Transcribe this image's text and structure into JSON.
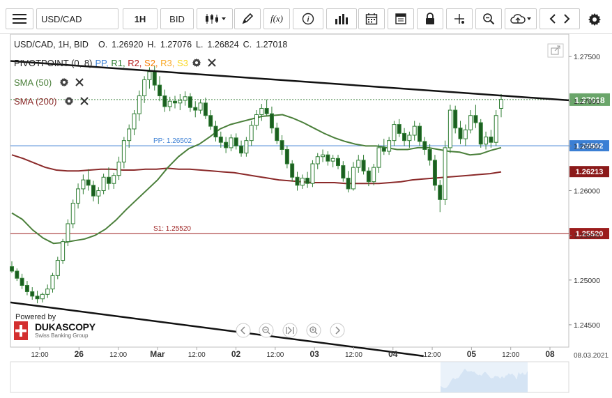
{
  "toolbar": {
    "symbol": "USD/CAD",
    "timeframe": "1H",
    "price_type": "BID",
    "fx_label": "f(x)"
  },
  "chart_header": {
    "text": "USD/CAD, 1H, BID",
    "open_label": "O.",
    "open": "1.26920",
    "high_label": "H.",
    "high": "1.27076",
    "low_label": "L.",
    "low": "1.26824",
    "close_label": "C.",
    "close": "1.27018"
  },
  "indicators": {
    "pivot": {
      "name": "PIVOTPOINT (0, 8)",
      "levels": [
        {
          "label": "PP",
          "color": "#3b7fd4"
        },
        {
          "label": "R1",
          "color": "#2e7d32"
        },
        {
          "label": "R2",
          "color": "#b71c1c"
        },
        {
          "label": "S2",
          "color": "#f57c00"
        },
        {
          "label": "R3",
          "color": "#f9a825"
        },
        {
          "label": "S3",
          "color": "#f9d71c"
        }
      ]
    },
    "sma50": {
      "name": "SMA (50)",
      "color": "#4a7f3a"
    },
    "sma200": {
      "name": "SMA (200)",
      "color": "#8b2a2a"
    }
  },
  "chart_data": {
    "type": "candlestick",
    "symbol": "USD/CAD",
    "interval": "1H",
    "price_type": "BID",
    "y_range": [
      1.2425,
      1.2775
    ],
    "y_ticks": [
      "1.27500",
      "1.27000",
      "1.26500",
      "1.26000",
      "1.25500",
      "1.25000",
      "1.24500"
    ],
    "y_tick_values": [
      1.275,
      1.27,
      1.265,
      1.26,
      1.255,
      1.25,
      1.245
    ],
    "x_labels": [
      "12:00",
      "26",
      "12:00",
      "Mar",
      "12:00",
      "02",
      "12:00",
      "03",
      "12:00",
      "04",
      "12:00",
      "05",
      "12:00",
      "08"
    ],
    "date_label": "08.03.2021",
    "last_price": "1.27018",
    "last_price_value": 1.27018,
    "pivot_levels": [
      {
        "name": "PP",
        "label": "PP: 1.26502",
        "value": 1.26502,
        "badge": "1.26502",
        "color": "#3b7fd4"
      },
      {
        "name": "S1",
        "label": "S1: 1.25520",
        "value": 1.2552,
        "badge": "1.25520",
        "color": "#9b1c1c"
      }
    ],
    "sma200_badge": "1.26213",
    "sma200_value": 1.26213,
    "trend_lines": [
      {
        "from": [
          0,
          1.2745
        ],
        "to": [
          1,
          1.2701
        ]
      },
      {
        "from": [
          0,
          1.2475
        ],
        "to": [
          0.74,
          1.2415
        ]
      }
    ],
    "sma50": [
      1.2575,
      1.2568,
      1.2556,
      1.2547,
      1.2541,
      1.2542,
      1.2544,
      1.2546,
      1.255,
      1.2557,
      1.2567,
      1.2579,
      1.259,
      1.2601,
      1.2612,
      1.2626,
      1.2638,
      1.2647,
      1.2652,
      1.266,
      1.2669,
      1.2674,
      1.2677,
      1.268,
      1.2683,
      1.2684,
      1.2685,
      1.2681,
      1.2676,
      1.267,
      1.2664,
      1.2659,
      1.2655,
      1.2652,
      1.265,
      1.265,
      1.2648,
      1.2646,
      1.2646,
      1.2648,
      1.2648,
      1.2646,
      1.2644,
      1.2643,
      1.264,
      1.2641,
      1.2645,
      1.2648
    ],
    "sma200": [
      1.264,
      1.2636,
      1.2631,
      1.2626,
      1.2623,
      1.2622,
      1.2622,
      1.2623,
      1.2624,
      1.2624,
      1.2623,
      1.2623,
      1.2624,
      1.2624,
      1.2625,
      1.2624,
      1.2624,
      1.2623,
      1.2622,
      1.2621,
      1.262,
      1.2618,
      1.2616,
      1.2614,
      1.2612,
      1.2611,
      1.261,
      1.2609,
      1.2609,
      1.2609,
      1.2608,
      1.2608,
      1.2608,
      1.2608,
      1.2609,
      1.261,
      1.2612,
      1.2613,
      1.2614,
      1.2615,
      1.2616,
      1.2617,
      1.2618,
      1.2619,
      1.2621
    ],
    "candles": [
      [
        1.2515,
        1.2521,
        1.2508,
        1.251
      ],
      [
        1.251,
        1.2513,
        1.2499,
        1.2502
      ],
      [
        1.2502,
        1.2507,
        1.249,
        1.2494
      ],
      [
        1.2494,
        1.2499,
        1.2483,
        1.2487
      ],
      [
        1.2487,
        1.2492,
        1.2478,
        1.2482
      ],
      [
        1.2482,
        1.2488,
        1.2474,
        1.2479
      ],
      [
        1.2479,
        1.2486,
        1.2475,
        1.2484
      ],
      [
        1.2484,
        1.2495,
        1.248,
        1.249
      ],
      [
        1.249,
        1.2508,
        1.2486,
        1.2505
      ],
      [
        1.2505,
        1.2526,
        1.2501,
        1.2522
      ],
      [
        1.2522,
        1.2546,
        1.2518,
        1.2543
      ],
      [
        1.2543,
        1.2568,
        1.2538,
        1.2563
      ],
      [
        1.2563,
        1.259,
        1.2558,
        1.2586
      ],
      [
        1.2586,
        1.2608,
        1.258,
        1.2602
      ],
      [
        1.2602,
        1.2618,
        1.2596,
        1.2612
      ],
      [
        1.2612,
        1.2624,
        1.26,
        1.2606
      ],
      [
        1.2606,
        1.2611,
        1.2588,
        1.2594
      ],
      [
        1.2594,
        1.2604,
        1.2585,
        1.26
      ],
      [
        1.26,
        1.2619,
        1.2596,
        1.2615
      ],
      [
        1.2615,
        1.2626,
        1.2601,
        1.2608
      ],
      [
        1.2608,
        1.262,
        1.2602,
        1.2617
      ],
      [
        1.2617,
        1.2638,
        1.2612,
        1.2632
      ],
      [
        1.2632,
        1.266,
        1.2625,
        1.2656
      ],
      [
        1.2656,
        1.2674,
        1.2648,
        1.2669
      ],
      [
        1.2669,
        1.269,
        1.2662,
        1.2686
      ],
      [
        1.2686,
        1.2712,
        1.2678,
        1.2706
      ],
      [
        1.2706,
        1.2728,
        1.2698,
        1.2724
      ],
      [
        1.2724,
        1.2738,
        1.2714,
        1.2733
      ],
      [
        1.2733,
        1.274,
        1.2712,
        1.2718
      ],
      [
        1.2718,
        1.2728,
        1.27,
        1.2706
      ],
      [
        1.2706,
        1.2713,
        1.2688,
        1.2694
      ],
      [
        1.2694,
        1.2705,
        1.2689,
        1.27
      ],
      [
        1.27,
        1.2706,
        1.2692,
        1.2698
      ],
      [
        1.2698,
        1.2708,
        1.269,
        1.2701
      ],
      [
        1.2701,
        1.2711,
        1.2695,
        1.2705
      ],
      [
        1.2705,
        1.2709,
        1.2688,
        1.2693
      ],
      [
        1.2693,
        1.27,
        1.2682,
        1.269
      ],
      [
        1.269,
        1.2702,
        1.2686,
        1.2698
      ],
      [
        1.2698,
        1.2704,
        1.268,
        1.2684
      ],
      [
        1.2684,
        1.269,
        1.2668,
        1.2672
      ],
      [
        1.2672,
        1.2678,
        1.2655,
        1.266
      ],
      [
        1.266,
        1.2666,
        1.2648,
        1.2654
      ],
      [
        1.2654,
        1.266,
        1.2642,
        1.2648
      ],
      [
        1.2648,
        1.2663,
        1.2644,
        1.2659
      ],
      [
        1.2659,
        1.2664,
        1.2646,
        1.265
      ],
      [
        1.265,
        1.2656,
        1.2638,
        1.2642
      ],
      [
        1.2642,
        1.266,
        1.2638,
        1.2656
      ],
      [
        1.2656,
        1.2678,
        1.265,
        1.2673
      ],
      [
        1.2673,
        1.269,
        1.2668,
        1.2685
      ],
      [
        1.2685,
        1.2697,
        1.2678,
        1.2692
      ],
      [
        1.2692,
        1.2702,
        1.2684,
        1.2686
      ],
      [
        1.2686,
        1.2694,
        1.2664,
        1.267
      ],
      [
        1.267,
        1.2676,
        1.2652,
        1.2656
      ],
      [
        1.2656,
        1.2662,
        1.264,
        1.2646
      ],
      [
        1.2646,
        1.265,
        1.2625,
        1.263
      ],
      [
        1.263,
        1.2634,
        1.261,
        1.2615
      ],
      [
        1.2615,
        1.2621,
        1.26,
        1.2606
      ],
      [
        1.2606,
        1.2618,
        1.2602,
        1.2614
      ],
      [
        1.2614,
        1.2621,
        1.2603,
        1.2608
      ],
      [
        1.2608,
        1.2634,
        1.2604,
        1.263
      ],
      [
        1.263,
        1.2642,
        1.2624,
        1.2638
      ],
      [
        1.2638,
        1.2646,
        1.2632,
        1.264
      ],
      [
        1.264,
        1.2644,
        1.2628,
        1.2633
      ],
      [
        1.2633,
        1.264,
        1.2626,
        1.2636
      ],
      [
        1.2636,
        1.264,
        1.2624,
        1.2628
      ],
      [
        1.2628,
        1.2633,
        1.261,
        1.2614
      ],
      [
        1.2614,
        1.2622,
        1.2598,
        1.2602
      ],
      [
        1.2602,
        1.2632,
        1.26,
        1.2626
      ],
      [
        1.2626,
        1.264,
        1.262,
        1.2634
      ],
      [
        1.2634,
        1.264,
        1.2618,
        1.2622
      ],
      [
        1.2622,
        1.2626,
        1.2605,
        1.261
      ],
      [
        1.261,
        1.263,
        1.2606,
        1.2626
      ],
      [
        1.2626,
        1.2652,
        1.262,
        1.2648
      ],
      [
        1.2648,
        1.2658,
        1.264,
        1.2644
      ],
      [
        1.2644,
        1.266,
        1.264,
        1.2656
      ],
      [
        1.2656,
        1.2678,
        1.265,
        1.2674
      ],
      [
        1.2674,
        1.268,
        1.266,
        1.2664
      ],
      [
        1.2664,
        1.267,
        1.265,
        1.2656
      ],
      [
        1.2656,
        1.2666,
        1.2648,
        1.2662
      ],
      [
        1.2662,
        1.2678,
        1.2656,
        1.2672
      ],
      [
        1.2672,
        1.2676,
        1.265,
        1.2655
      ],
      [
        1.2655,
        1.266,
        1.264,
        1.2646
      ],
      [
        1.2646,
        1.2652,
        1.2628,
        1.2634
      ],
      [
        1.2634,
        1.264,
        1.26,
        1.2606
      ],
      [
        1.2606,
        1.2612,
        1.2576,
        1.259
      ],
      [
        1.259,
        1.2656,
        1.2584,
        1.2648
      ],
      [
        1.2648,
        1.2696,
        1.2642,
        1.269
      ],
      [
        1.269,
        1.2695,
        1.2664,
        1.267
      ],
      [
        1.267,
        1.2678,
        1.2652,
        1.2658
      ],
      [
        1.2658,
        1.2674,
        1.265,
        1.2668
      ],
      [
        1.2668,
        1.269,
        1.2664,
        1.2684
      ],
      [
        1.2684,
        1.2696,
        1.267,
        1.2676
      ],
      [
        1.2676,
        1.268,
        1.2648,
        1.2652
      ],
      [
        1.2652,
        1.2666,
        1.2646,
        1.266
      ],
      [
        1.266,
        1.2668,
        1.2648,
        1.2654
      ],
      [
        1.2654,
        1.269,
        1.265,
        1.2684
      ],
      [
        1.2692,
        1.2708,
        1.2682,
        1.2702
      ]
    ]
  },
  "watermark": {
    "powered_by": "Powered by",
    "brand": "DUKASCOPY",
    "tagline": "Swiss Banking Group"
  }
}
